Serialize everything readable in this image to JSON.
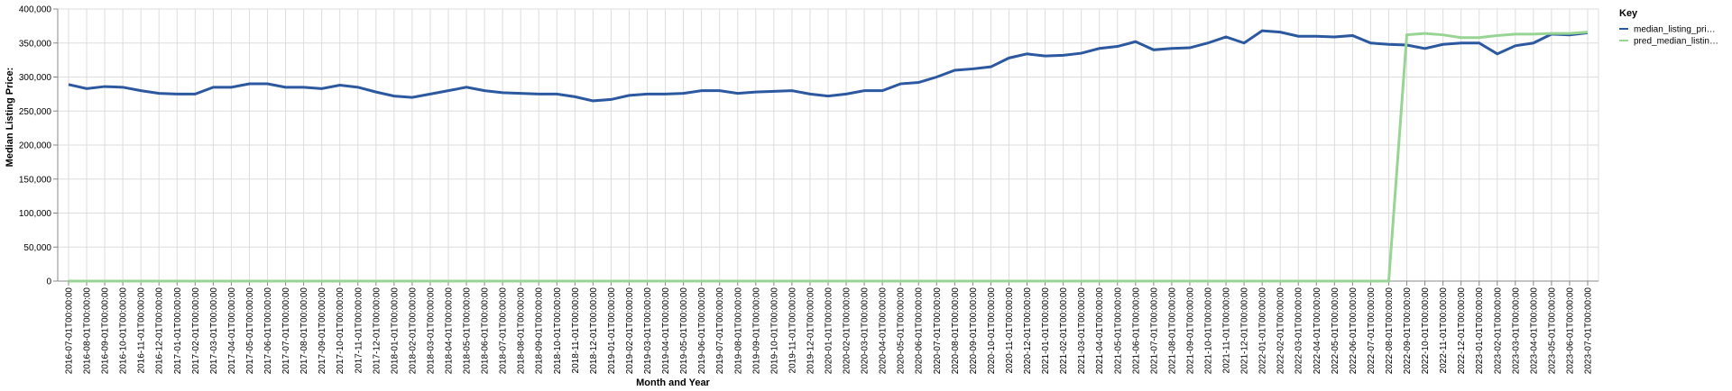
{
  "chart_data": {
    "type": "line",
    "x_label": "Month and Year",
    "y_label": "Median Listing Price:",
    "legend_title": "Key",
    "legend_position": "right",
    "grid": true,
    "categories": [
      "2016-07-01T00:00:00",
      "2016-08-01T00:00:00",
      "2016-09-01T00:00:00",
      "2016-10-01T00:00:00",
      "2016-11-01T00:00:00",
      "2016-12-01T00:00:00",
      "2017-01-01T00:00:00",
      "2017-02-01T00:00:00",
      "2017-03-01T00:00:00",
      "2017-04-01T00:00:00",
      "2017-05-01T00:00:00",
      "2017-06-01T00:00:00",
      "2017-07-01T00:00:00",
      "2017-08-01T00:00:00",
      "2017-09-01T00:00:00",
      "2017-10-01T00:00:00",
      "2017-11-01T00:00:00",
      "2017-12-01T00:00:00",
      "2018-01-01T00:00:00",
      "2018-02-01T00:00:00",
      "2018-03-01T00:00:00",
      "2018-04-01T00:00:00",
      "2018-05-01T00:00:00",
      "2018-06-01T00:00:00",
      "2018-07-01T00:00:00",
      "2018-08-01T00:00:00",
      "2018-09-01T00:00:00",
      "2018-10-01T00:00:00",
      "2018-11-01T00:00:00",
      "2018-12-01T00:00:00",
      "2019-01-01T00:00:00",
      "2019-02-01T00:00:00",
      "2019-03-01T00:00:00",
      "2019-04-01T00:00:00",
      "2019-05-01T00:00:00",
      "2019-06-01T00:00:00",
      "2019-07-01T00:00:00",
      "2019-08-01T00:00:00",
      "2019-09-01T00:00:00",
      "2019-10-01T00:00:00",
      "2019-11-01T00:00:00",
      "2019-12-01T00:00:00",
      "2020-01-01T00:00:00",
      "2020-02-01T00:00:00",
      "2020-03-01T00:00:00",
      "2020-04-01T00:00:00",
      "2020-05-01T00:00:00",
      "2020-06-01T00:00:00",
      "2020-07-01T00:00:00",
      "2020-08-01T00:00:00",
      "2020-09-01T00:00:00",
      "2020-10-01T00:00:00",
      "2020-11-01T00:00:00",
      "2020-12-01T00:00:00",
      "2021-01-01T00:00:00",
      "2021-02-01T00:00:00",
      "2021-03-01T00:00:00",
      "2021-04-01T00:00:00",
      "2021-05-01T00:00:00",
      "2021-06-01T00:00:00",
      "2021-07-01T00:00:00",
      "2021-08-01T00:00:00",
      "2021-09-01T00:00:00",
      "2021-10-01T00:00:00",
      "2021-11-01T00:00:00",
      "2021-12-01T00:00:00",
      "2022-01-01T00:00:00",
      "2022-02-01T00:00:00",
      "2022-03-01T00:00:00",
      "2022-04-01T00:00:00",
      "2022-05-01T00:00:00",
      "2022-06-01T00:00:00",
      "2022-07-01T00:00:00",
      "2022-08-01T00:00:00",
      "2022-09-01T00:00:00",
      "2022-10-01T00:00:00",
      "2022-11-01T00:00:00",
      "2022-12-01T00:00:00",
      "2023-01-01T00:00:00",
      "2023-02-01T00:00:00",
      "2023-03-01T00:00:00",
      "2023-04-01T00:00:00",
      "2023-05-01T00:00:00",
      "2023-06-01T00:00:00",
      "2023-07-01T00:00:00"
    ],
    "series": [
      {
        "name": "median_listing_pri…",
        "color": "#2c58a0",
        "values": [
          289000,
          283000,
          286000,
          285000,
          280000,
          276000,
          275000,
          275000,
          285000,
          285000,
          290000,
          290000,
          285000,
          285000,
          283000,
          288000,
          285000,
          278000,
          272000,
          270000,
          275000,
          280000,
          285000,
          280000,
          277000,
          276000,
          275000,
          275000,
          271000,
          265000,
          267000,
          273000,
          275000,
          275000,
          276000,
          280000,
          280000,
          276000,
          278000,
          279000,
          280000,
          275000,
          272000,
          275000,
          280000,
          280000,
          290000,
          292000,
          300000,
          310000,
          312000,
          315000,
          328000,
          334000,
          331000,
          332000,
          335000,
          342000,
          345000,
          352000,
          340000,
          342000,
          343000,
          350000,
          359000,
          350000,
          368000,
          366000,
          360000,
          360000,
          359000,
          361000,
          350000,
          348000,
          347000,
          342000,
          348000,
          350000,
          350000,
          334000,
          346000,
          350000,
          363000,
          362000,
          365000
        ]
      },
      {
        "name": "pred_median_listin…",
        "color": "#98d594",
        "values": [
          0,
          0,
          0,
          0,
          0,
          0,
          0,
          0,
          0,
          0,
          0,
          0,
          0,
          0,
          0,
          0,
          0,
          0,
          0,
          0,
          0,
          0,
          0,
          0,
          0,
          0,
          0,
          0,
          0,
          0,
          0,
          0,
          0,
          0,
          0,
          0,
          0,
          0,
          0,
          0,
          0,
          0,
          0,
          0,
          0,
          0,
          0,
          0,
          0,
          0,
          0,
          0,
          0,
          0,
          0,
          0,
          0,
          0,
          0,
          0,
          0,
          0,
          0,
          0,
          0,
          0,
          0,
          0,
          0,
          0,
          0,
          0,
          0,
          0,
          362000,
          364000,
          362000,
          358000,
          358000,
          361000,
          363000,
          363000,
          364000,
          364000,
          366000
        ]
      }
    ],
    "ylim": [
      0,
      400000
    ],
    "yticks": [
      0,
      {
        "value": 50000,
        "label": "50,000"
      },
      {
        "value": 100000,
        "label": "100,000"
      },
      {
        "value": 150000,
        "label": "150,000"
      },
      {
        "value": 200000,
        "label": "200,000"
      },
      {
        "value": 250000,
        "label": "250,000"
      },
      {
        "value": 300000,
        "label": "300,000"
      },
      {
        "value": 350000,
        "label": "350,000"
      },
      {
        "value": 400000,
        "label": "400,000"
      }
    ]
  }
}
